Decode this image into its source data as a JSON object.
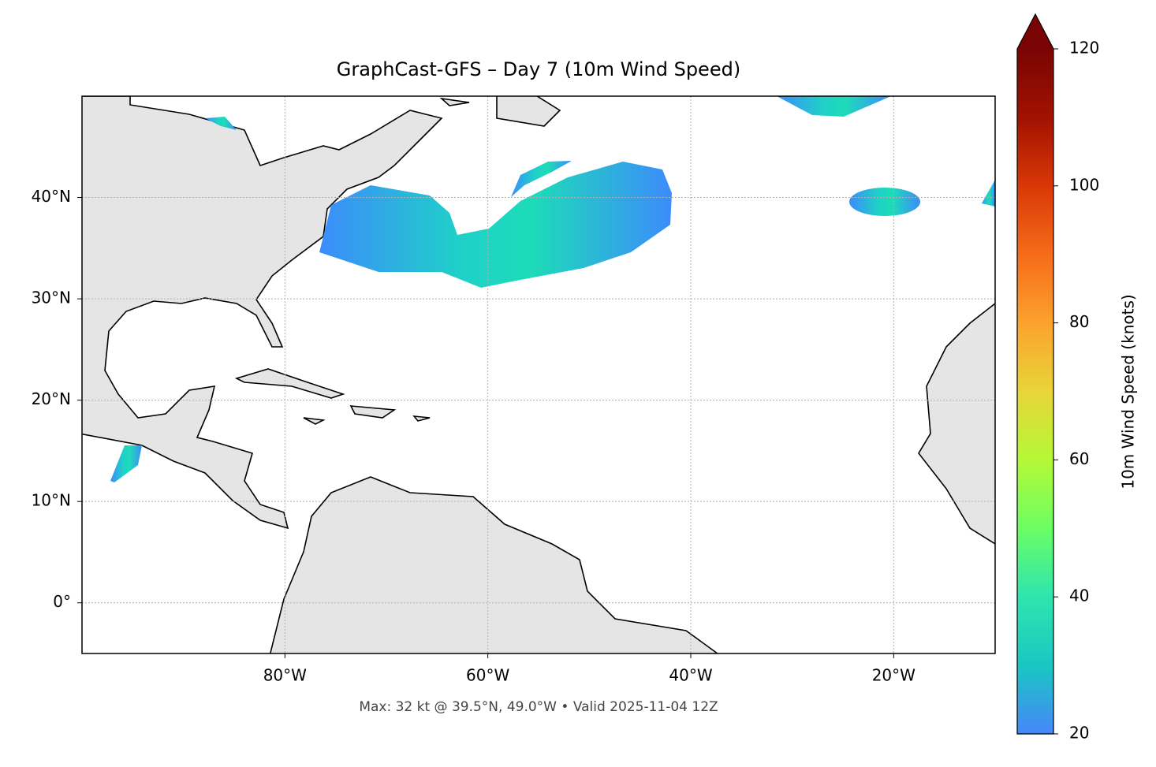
{
  "chart_data": {
    "type": "map",
    "title": "GraphCast-GFS – Day 7 (10m Wind Speed)",
    "annotation": "Max: 32 kt @ 39.5°N, 49.0°W • Valid 2025-11-04 12Z",
    "xlim": [
      -100,
      -10
    ],
    "ylim": [
      -5,
      50
    ],
    "xticks": [
      {
        "value": -80,
        "label": "80°W"
      },
      {
        "value": -60,
        "label": "60°W"
      },
      {
        "value": -40,
        "label": "40°W"
      },
      {
        "value": -20,
        "label": "20°W"
      }
    ],
    "yticks": [
      {
        "value": 0,
        "label": "0°"
      },
      {
        "value": 10,
        "label": "10°N"
      },
      {
        "value": 20,
        "label": "20°N"
      },
      {
        "value": 30,
        "label": "30°N"
      },
      {
        "value": 40,
        "label": "40°N"
      }
    ],
    "grid": true,
    "colorbar": {
      "label": "10m Wind Speed (knots)",
      "lim": [
        20,
        120
      ],
      "ticks": [
        20,
        40,
        60,
        80,
        100,
        120
      ],
      "extend": "max",
      "colors": [
        "#4686fb",
        "#1ac7c2",
        "#2ee5ae",
        "#6bfe64",
        "#b5f836",
        "#e8d539",
        "#fca22e",
        "#f66b19",
        "#d93806",
        "#a11201",
        "#7a0403"
      ]
    }
  }
}
